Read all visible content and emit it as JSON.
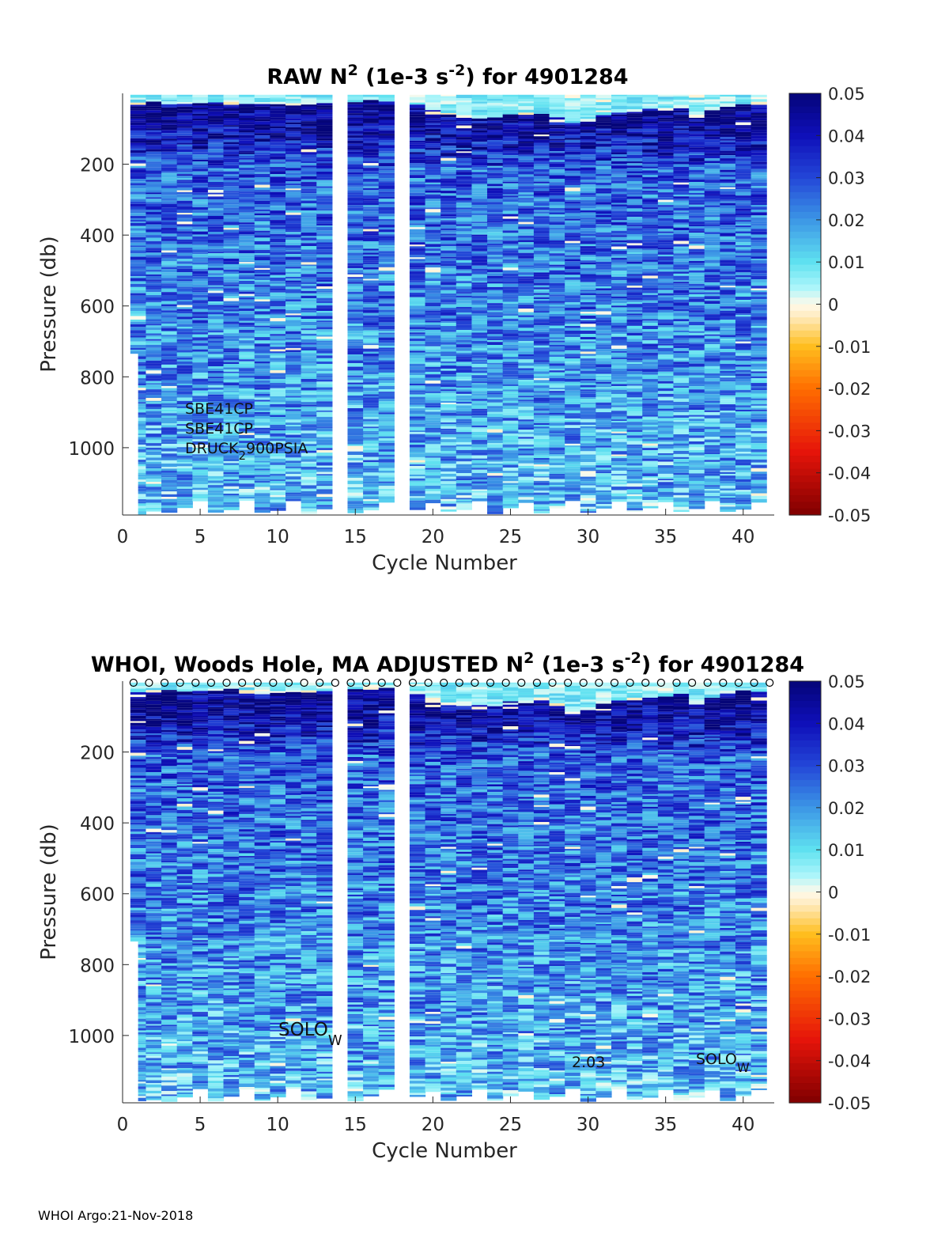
{
  "footer": "WHOI Argo:21-Nov-2018",
  "colors": {
    "deep_blue": "#0a0a8c",
    "cyan": "#5ee6f0",
    "zero": "#fff7e0",
    "red": "#8b0000"
  },
  "chart_data": [
    {
      "type": "heatmap",
      "title_main": "RAW N",
      "title_sup1": "2",
      "title_mid": " (1e-3 s",
      "title_sup2": "-2",
      "title_end": ") for 4901284",
      "xlabel": "Cycle Number",
      "ylabel": "Pressure (db)",
      "xlim": [
        0,
        42
      ],
      "ylim": [
        1190,
        0
      ],
      "xticks": [
        "0",
        "5",
        "10",
        "15",
        "20",
        "25",
        "30",
        "35",
        "40"
      ],
      "yticks": [
        "200",
        "400",
        "600",
        "800",
        "1000"
      ],
      "colorbar": {
        "range": [
          -0.05,
          0.05
        ],
        "ticks": [
          "0.05",
          "0.04",
          "0.03",
          "0.02",
          "0.01",
          "0",
          "-0.01",
          "-0.02",
          "-0.03",
          "-0.04",
          "-0.05"
        ]
      },
      "missing_cycles": [
        14,
        18
      ],
      "annotations": [
        "SBE41CP",
        "SBE41CP",
        "DRUCK",
        "2",
        "900PSIA"
      ],
      "surface_markers": false
    },
    {
      "type": "heatmap",
      "title_main": "WHOI, Woods Hole, MA  ADJUSTED N",
      "title_sup1": "2",
      "title_mid": " (1e-3 s",
      "title_sup2": "-2",
      "title_end": ") for 4901284",
      "xlabel": "Cycle Number",
      "ylabel": "Pressure (db)",
      "xlim": [
        0,
        42
      ],
      "ylim": [
        1190,
        0
      ],
      "xticks": [
        "0",
        "5",
        "10",
        "15",
        "20",
        "25",
        "30",
        "35",
        "40"
      ],
      "yticks": [
        "200",
        "400",
        "600",
        "800",
        "1000"
      ],
      "colorbar": {
        "range": [
          -0.05,
          0.05
        ],
        "ticks": [
          "0.05",
          "0.04",
          "0.03",
          "0.02",
          "0.01",
          "0",
          "-0.01",
          "-0.02",
          "-0.03",
          "-0.04",
          "-0.05"
        ]
      },
      "missing_cycles": [
        14,
        18
      ],
      "annotations": [
        "SOLO",
        "W",
        "2.03",
        "SOLO",
        "W"
      ],
      "surface_markers": true
    }
  ]
}
